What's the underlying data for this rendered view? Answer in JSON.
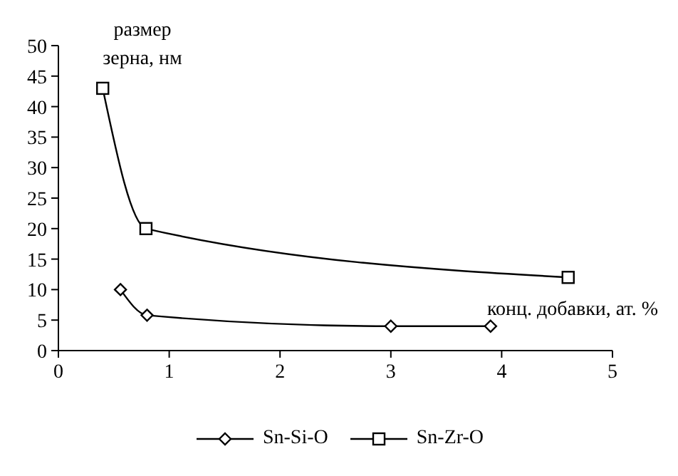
{
  "chart_data": {
    "type": "line",
    "xlabel": "конц. добавки, ат. %",
    "ylabel": "размер зерна, нм",
    "xlim": [
      0,
      5
    ],
    "xticks": [
      0,
      1,
      2,
      3,
      4,
      5
    ],
    "ylim": [
      0,
      50
    ],
    "yticks": [
      0,
      5,
      10,
      15,
      20,
      25,
      30,
      35,
      40,
      45,
      50
    ],
    "grid": false,
    "legend": "bottom",
    "line_style": "solid",
    "series": [
      {
        "name": "Sn-Si-O",
        "color": "#000000",
        "marker": "diamond",
        "x": [
          0.56,
          0.8,
          3.0,
          3.9
        ],
        "values": [
          10,
          5.8,
          4,
          4
        ]
      },
      {
        "name": "Sn-Zr-O",
        "color": "#000000",
        "marker": "square",
        "x": [
          0.4,
          0.79,
          4.6
        ],
        "values": [
          43,
          20,
          12
        ]
      }
    ]
  }
}
